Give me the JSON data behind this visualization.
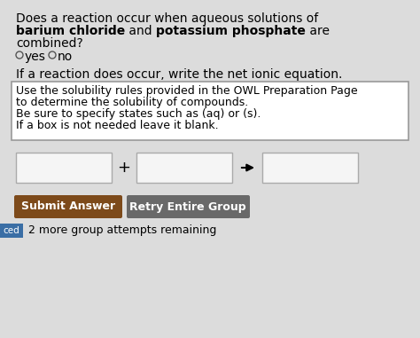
{
  "bg_color": "#dcdcdc",
  "title_line1": "Does a reaction occur when aqueous solutions of",
  "title_bold_part1": "barium chloride",
  "title_mid": " and ",
  "title_bold_part2": "potassium phosphate",
  "title_line2_end": " are",
  "title_line3": "combined?",
  "radio_yes": "yes",
  "radio_no": "no",
  "subheading": "If a reaction does occur, write the net ionic equation.",
  "hint_line1": "Use the solubility rules provided in the OWL Preparation Page",
  "hint_line2": "to determine the solubility of compounds.",
  "hint_line3": "Be sure to specify states such as (aq) or (s).",
  "hint_line4": "If a box is not needed leave it blank.",
  "btn_submit": "Submit Answer",
  "btn_retry": "Retry Entire Group",
  "btn_submit_color": "#7d4a1a",
  "btn_retry_color": "#696969",
  "footer_text": "2 more group attempts remaining",
  "left_tab_color": "#3a6ea5",
  "left_tab_label": "ced",
  "hint_box_bg": "#ffffff",
  "hint_border_color": "#999999",
  "input_box_color": "#f5f5f5",
  "input_border_color": "#aaaaaa",
  "font_size_main": 10,
  "font_size_hint": 9,
  "font_size_btn": 9
}
